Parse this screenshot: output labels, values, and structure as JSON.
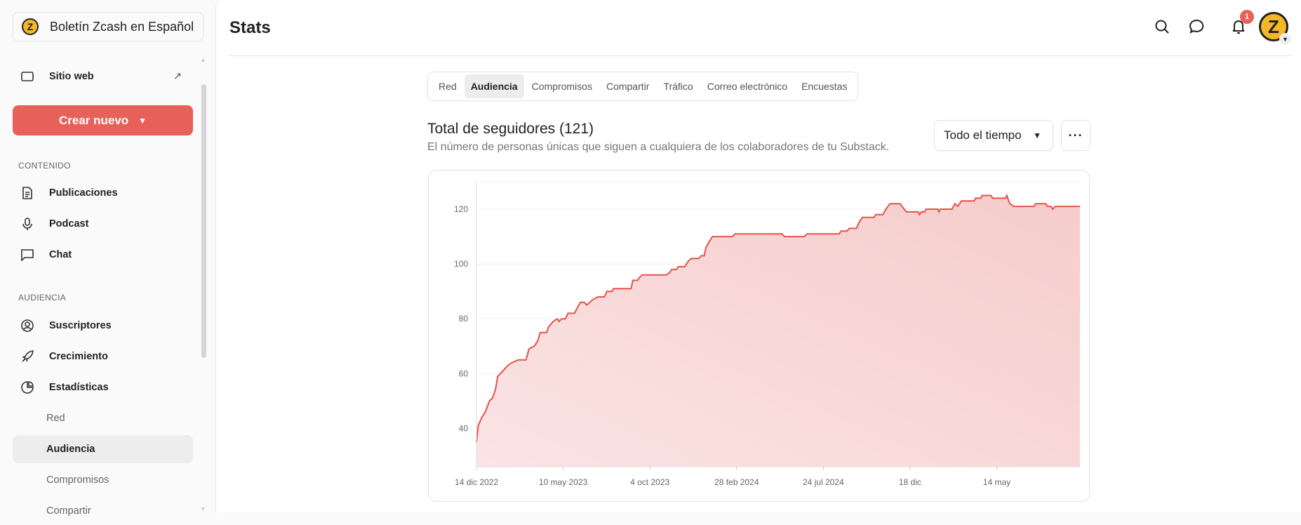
{
  "sidebar": {
    "publication": "Boletín Zcash en Español",
    "website": "Sitio web",
    "create_button": "Crear nuevo",
    "sections": {
      "content": "CONTENIDO",
      "audience": "AUDIENCIA"
    },
    "content_items": [
      "Publicaciones",
      "Podcast",
      "Chat"
    ],
    "audience_items": [
      "Suscriptores",
      "Crecimiento",
      "Estadísticas"
    ],
    "stats_subitems": [
      "Red",
      "Audiencia",
      "Compromisos",
      "Compartir"
    ],
    "active_subitem": "Audiencia"
  },
  "header": {
    "title": "Stats",
    "notification_count": "1"
  },
  "tabs": [
    "Red",
    "Audiencia",
    "Compromisos",
    "Compartir",
    "Tráfico",
    "Correo electrónico",
    "Encuestas"
  ],
  "active_tab": "Audiencia",
  "card": {
    "title": "Total de seguidores (121)",
    "subtitle": "El número de personas únicas que siguen a cualquiera de los colaboradores de tu Substack.",
    "range": "Todo el tiempo",
    "more": "···"
  },
  "colors": {
    "accent": "#e8605a",
    "line": "#e5534b"
  },
  "chart_data": {
    "type": "area",
    "title": "Total de seguidores (121)",
    "xlabel": "",
    "ylabel": "",
    "x_unit": "days since 14 dic 2022",
    "xlim": [
      0,
      1023
    ],
    "ylim": [
      26,
      130
    ],
    "yticks": [
      40,
      60,
      80,
      100,
      120
    ],
    "xticks": [
      {
        "day": 0,
        "label": "14 dic 2022"
      },
      {
        "day": 147,
        "label": "10 may 2023"
      },
      {
        "day": 294,
        "label": "4 oct 2023"
      },
      {
        "day": 441,
        "label": "28 feb 2024"
      },
      {
        "day": 588,
        "label": "24 jul 2024"
      },
      {
        "day": 735,
        "label": "18 dic"
      },
      {
        "day": 882,
        "label": "14 may"
      }
    ],
    "grid": true,
    "points": [
      [
        0,
        35
      ],
      [
        3,
        41
      ],
      [
        9,
        44
      ],
      [
        15,
        46
      ],
      [
        22,
        50
      ],
      [
        27,
        51
      ],
      [
        32,
        54
      ],
      [
        36,
        59
      ],
      [
        45,
        61
      ],
      [
        53,
        63
      ],
      [
        60,
        64
      ],
      [
        71,
        65
      ],
      [
        84,
        65
      ],
      [
        89,
        69
      ],
      [
        98,
        70
      ],
      [
        104,
        72
      ],
      [
        108,
        75
      ],
      [
        119,
        75
      ],
      [
        122,
        77
      ],
      [
        130,
        79
      ],
      [
        137,
        80
      ],
      [
        140,
        79
      ],
      [
        144,
        80
      ],
      [
        151,
        80
      ],
      [
        155,
        82
      ],
      [
        166,
        82
      ],
      [
        171,
        84
      ],
      [
        176,
        86
      ],
      [
        183,
        86
      ],
      [
        187,
        85
      ],
      [
        192,
        86
      ],
      [
        197,
        87
      ],
      [
        206,
        88
      ],
      [
        217,
        88
      ],
      [
        221,
        90
      ],
      [
        230,
        90
      ],
      [
        232,
        91
      ],
      [
        262,
        91
      ],
      [
        265,
        94
      ],
      [
        273,
        94
      ],
      [
        276,
        95
      ],
      [
        281,
        96
      ],
      [
        322,
        96
      ],
      [
        328,
        97
      ],
      [
        331,
        98
      ],
      [
        339,
        98
      ],
      [
        342,
        99
      ],
      [
        353,
        99
      ],
      [
        359,
        101
      ],
      [
        364,
        102
      ],
      [
        377,
        102
      ],
      [
        381,
        103
      ],
      [
        386,
        103
      ],
      [
        389,
        106
      ],
      [
        394,
        108
      ],
      [
        400,
        110
      ],
      [
        434,
        110
      ],
      [
        438,
        111
      ],
      [
        518,
        111
      ],
      [
        522,
        110
      ],
      [
        556,
        110
      ],
      [
        560,
        111
      ],
      [
        615,
        111
      ],
      [
        618,
        112
      ],
      [
        628,
        112
      ],
      [
        632,
        113
      ],
      [
        644,
        113
      ],
      [
        648,
        115
      ],
      [
        654,
        117
      ],
      [
        674,
        117
      ],
      [
        677,
        118
      ],
      [
        689,
        118
      ],
      [
        694,
        120
      ],
      [
        701,
        122
      ],
      [
        718,
        122
      ],
      [
        725,
        120
      ],
      [
        729,
        119
      ],
      [
        749,
        119
      ],
      [
        751,
        118
      ],
      [
        754,
        119
      ],
      [
        760,
        119
      ],
      [
        762,
        120
      ],
      [
        782,
        120
      ],
      [
        784,
        119
      ],
      [
        786,
        120
      ],
      [
        806,
        120
      ],
      [
        811,
        122
      ],
      [
        816,
        121
      ],
      [
        822,
        123
      ],
      [
        844,
        123
      ],
      [
        846,
        124
      ],
      [
        855,
        124
      ],
      [
        857,
        125
      ],
      [
        872,
        125
      ],
      [
        875,
        124
      ],
      [
        897,
        124
      ],
      [
        899,
        125
      ],
      [
        904,
        122
      ],
      [
        911,
        121
      ],
      [
        945,
        121
      ],
      [
        948,
        122
      ],
      [
        965,
        122
      ],
      [
        968,
        121
      ],
      [
        974,
        121
      ],
      [
        977,
        120
      ],
      [
        981,
        121
      ],
      [
        1023,
        121
      ]
    ]
  }
}
